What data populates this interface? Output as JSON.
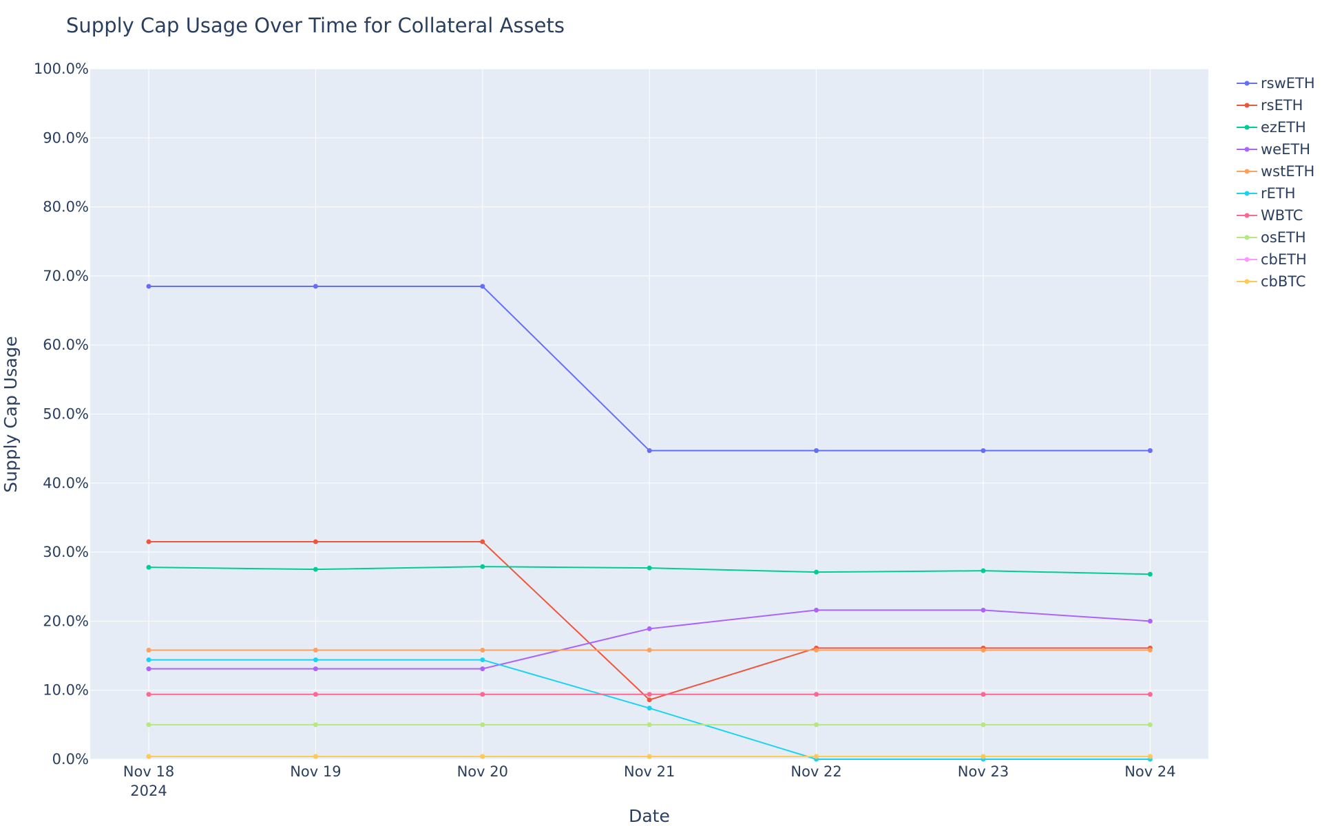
{
  "chart_data": {
    "type": "line",
    "title": "Supply Cap Usage Over Time for Collateral Assets",
    "xlabel": "Date",
    "ylabel": "Supply Cap Usage",
    "x": [
      "2024-11-18",
      "2024-11-19",
      "2024-11-20",
      "2024-11-21",
      "2024-11-22",
      "2024-11-23",
      "2024-11-24"
    ],
    "x_tick_labels": [
      "Nov 18",
      "Nov 19",
      "Nov 20",
      "Nov 21",
      "Nov 22",
      "Nov 23",
      "Nov 24"
    ],
    "x_tick_year": "2024",
    "y_ticks": [
      "0.0%",
      "10.0%",
      "20.0%",
      "30.0%",
      "40.0%",
      "50.0%",
      "60.0%",
      "70.0%",
      "80.0%",
      "90.0%",
      "100.0%"
    ],
    "ylim": [
      0,
      100
    ],
    "y_unit": "%",
    "grid": true,
    "legend_position": "right",
    "series": [
      {
        "name": "rswETH",
        "color": "#636efa",
        "values": [
          68.5,
          68.5,
          68.5,
          44.7,
          44.7,
          44.7,
          44.7
        ]
      },
      {
        "name": "rsETH",
        "color": "#ef553b",
        "values": [
          31.5,
          31.5,
          31.5,
          8.6,
          16.1,
          16.1,
          16.1
        ]
      },
      {
        "name": "ezETH",
        "color": "#00cc96",
        "values": [
          27.8,
          27.5,
          27.9,
          27.7,
          27.1,
          27.3,
          26.8
        ]
      },
      {
        "name": "weETH",
        "color": "#ab63fa",
        "values": [
          13.1,
          13.1,
          13.1,
          18.9,
          21.6,
          21.6,
          20.0
        ]
      },
      {
        "name": "wstETH",
        "color": "#ffa15a",
        "values": [
          15.8,
          15.8,
          15.8,
          15.8,
          15.8,
          15.8,
          15.8
        ]
      },
      {
        "name": "rETH",
        "color": "#19d3f3",
        "values": [
          14.4,
          14.4,
          14.4,
          7.4,
          0.0,
          0.0,
          0.0
        ]
      },
      {
        "name": "WBTC",
        "color": "#ff6692",
        "values": [
          9.4,
          9.4,
          9.4,
          9.4,
          9.4,
          9.4,
          9.4
        ]
      },
      {
        "name": "osETH",
        "color": "#b6e880",
        "values": [
          5.0,
          5.0,
          5.0,
          5.0,
          5.0,
          5.0,
          5.0
        ]
      },
      {
        "name": "cbETH",
        "color": "#ff97ff",
        "values": [
          0.4,
          0.4,
          0.4,
          0.4,
          0.4,
          0.4,
          0.4
        ]
      },
      {
        "name": "cbBTC",
        "color": "#fecb52",
        "values": [
          0.4,
          0.4,
          0.4,
          0.4,
          0.4,
          0.4,
          0.4
        ]
      }
    ]
  }
}
